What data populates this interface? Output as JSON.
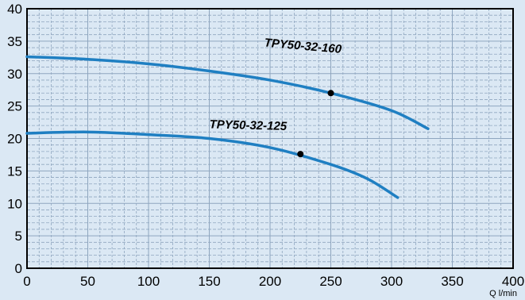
{
  "chart_data": {
    "type": "line",
    "x_unit_label": "Q l/min",
    "x_ticks": [
      "0",
      "50",
      "100",
      "150",
      "200",
      "250",
      "300",
      "350",
      "400"
    ],
    "y_ticks": [
      "0",
      "5",
      "10",
      "15",
      "20",
      "25",
      "30",
      "35",
      "40"
    ],
    "xlim": [
      0,
      400
    ],
    "ylim": [
      0,
      40
    ],
    "grid": true,
    "colors": {
      "background": "#dbe8f4",
      "curve": "#1f7fc2",
      "grid": "#8fa6bf",
      "marker": "#000000"
    },
    "series": [
      {
        "name": "TPY50-32-160",
        "x": [
          0,
          50,
          100,
          150,
          200,
          250,
          300,
          330
        ],
        "y": [
          32.6,
          32.2,
          31.5,
          30.4,
          29.0,
          27.0,
          24.3,
          21.5
        ],
        "marker": {
          "x": 250,
          "y": 27.0
        }
      },
      {
        "name": "TPY50-32-125",
        "x": [
          0,
          50,
          100,
          150,
          200,
          250,
          280,
          305
        ],
        "y": [
          20.8,
          21.0,
          20.6,
          20.0,
          18.6,
          16.0,
          13.8,
          10.9
        ],
        "marker": {
          "x": 225,
          "y": 17.6
        }
      }
    ]
  }
}
